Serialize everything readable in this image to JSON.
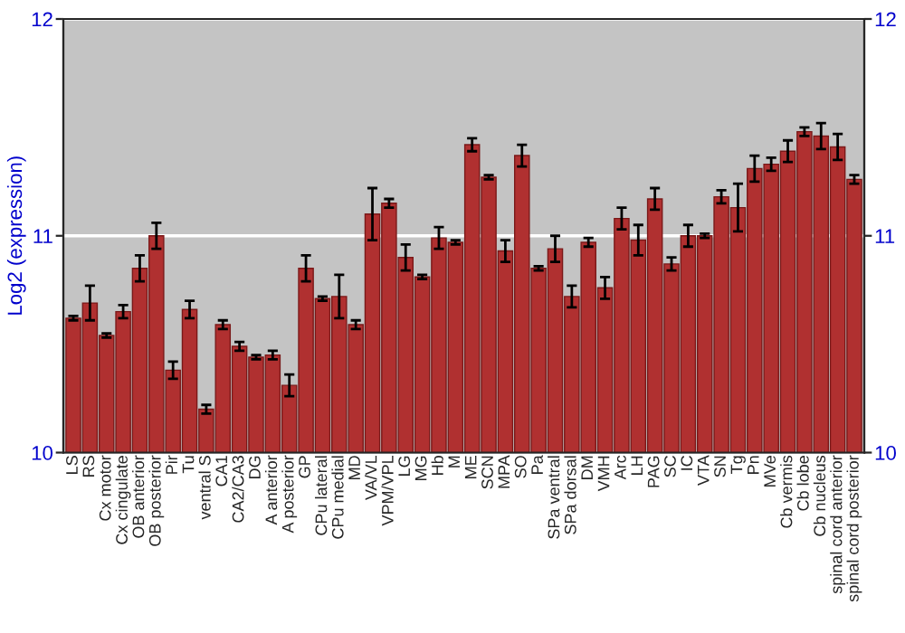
{
  "chart_data": {
    "type": "bar",
    "ylabel": "Log2 (expression)",
    "categories": [
      "LS",
      "RS",
      "Cx motor",
      "Cx cingulate",
      "OB anterior",
      "OB posterior",
      "Pir",
      "Tu",
      "ventral S",
      "CA1",
      "CA2/CA3",
      "DG",
      "A anterior",
      "A posterior",
      "GP",
      "CPu lateral",
      "CPu medial",
      "MD",
      "VA/VL",
      "VPM/VPL",
      "LG",
      "MG",
      "Hb",
      "M",
      "ME",
      "SCN",
      "MPA",
      "SO",
      "Pa",
      "SPa ventral",
      "SPa dorsal",
      "DM",
      "VMH",
      "Arc",
      "LH",
      "PAG",
      "SC",
      "IC",
      "VTA",
      "SN",
      "Tg",
      "Pn",
      "MVe",
      "Cb vermis",
      "Cb lobe",
      "Cb nucleus",
      "spinal cord anterior",
      "spinal cord posterior"
    ],
    "values": [
      10.62,
      10.69,
      10.54,
      10.65,
      10.85,
      11.0,
      10.38,
      10.66,
      10.2,
      10.59,
      10.49,
      10.44,
      10.45,
      10.31,
      10.85,
      10.71,
      10.72,
      10.59,
      11.1,
      11.15,
      10.9,
      10.81,
      10.99,
      10.97,
      11.42,
      11.27,
      10.93,
      11.37,
      10.85,
      10.94,
      10.72,
      10.97,
      10.76,
      11.08,
      10.98,
      11.17,
      10.87,
      11.0,
      11.0,
      11.18,
      11.13,
      11.31,
      11.33,
      11.39,
      11.48,
      11.46,
      11.41,
      11.26
    ],
    "errors": [
      0.01,
      0.08,
      0.01,
      0.03,
      0.06,
      0.06,
      0.04,
      0.04,
      0.02,
      0.02,
      0.02,
      0.01,
      0.02,
      0.05,
      0.06,
      0.01,
      0.1,
      0.02,
      0.12,
      0.02,
      0.06,
      0.01,
      0.05,
      0.01,
      0.03,
      0.01,
      0.05,
      0.05,
      0.01,
      0.06,
      0.05,
      0.02,
      0.05,
      0.05,
      0.07,
      0.05,
      0.03,
      0.05,
      0.01,
      0.03,
      0.11,
      0.06,
      0.03,
      0.05,
      0.02,
      0.06,
      0.06,
      0.02
    ],
    "color": "#b03030",
    "ylim": [
      10,
      12
    ],
    "yticks": [
      10,
      11,
      12
    ],
    "y2lim": [
      10,
      12
    ],
    "y2ticks": [
      10,
      11,
      12
    ],
    "grid": "y"
  }
}
